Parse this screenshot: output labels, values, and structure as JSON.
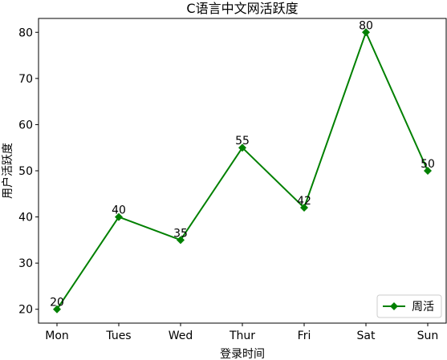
{
  "chart_data": {
    "type": "line",
    "title": "C语言中文网活跃度",
    "xlabel": "登录时间",
    "ylabel": "用户活跃度",
    "categories": [
      "Mon",
      "Tues",
      "Wed",
      "Thur",
      "Fri",
      "Sat",
      "Sun"
    ],
    "series": [
      {
        "name": "周活",
        "values": [
          20,
          40,
          35,
          55,
          42,
          80,
          50
        ],
        "color": "#008000",
        "marker": "diamond"
      }
    ],
    "ylim": [
      17,
      83
    ],
    "yticks": [
      20,
      30,
      40,
      50,
      60,
      70,
      80
    ],
    "grid": false,
    "legend_position": "bottom-right",
    "data_labels": true
  }
}
